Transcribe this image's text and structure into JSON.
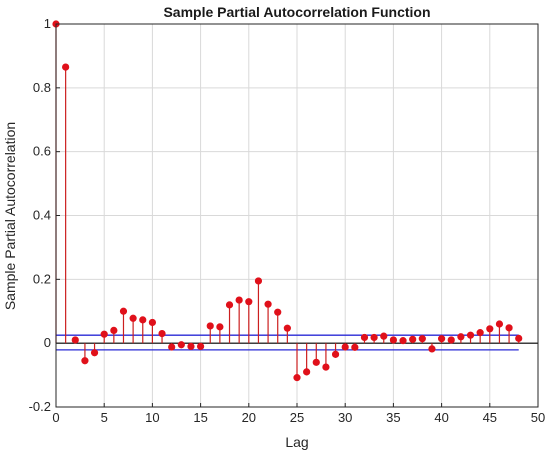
{
  "colors": {
    "stem": "#cc1f1f",
    "marker": "#e0101a",
    "bound": "#2a2ad6",
    "zero_line": "#000000",
    "grid": "#d9d9d9",
    "axis": "#262626"
  },
  "chart_data": {
    "type": "stem",
    "title": "Sample Partial Autocorrelation Function",
    "xlabel": "Lag",
    "ylabel": "Sample Partial Autocorrelation",
    "xlim": [
      0,
      50
    ],
    "ylim": [
      -0.2,
      1
    ],
    "grid": true,
    "x_ticks": [
      "0",
      "5",
      "10",
      "15",
      "20",
      "25",
      "30",
      "35",
      "40",
      "45",
      "50"
    ],
    "y_ticks": [
      "-0.2",
      "0",
      "0.2",
      "0.4",
      "0.6",
      "0.8",
      "1"
    ],
    "confidence_bounds": [
      0.025,
      -0.021
    ],
    "series": [
      {
        "lags": [
          0,
          1,
          2,
          3,
          4,
          5,
          6,
          7,
          8,
          9,
          10,
          11,
          12,
          13,
          14,
          15,
          16,
          17,
          18,
          19,
          20,
          21,
          22,
          23,
          24,
          25,
          26,
          27,
          28,
          29,
          30,
          31,
          32,
          33,
          34,
          35,
          36,
          37,
          38,
          39,
          40,
          41,
          42,
          43,
          44,
          45,
          46,
          47,
          48
        ],
        "values": [
          1.0,
          0.865,
          0.01,
          -0.055,
          -0.03,
          0.028,
          0.04,
          0.1,
          0.078,
          0.073,
          0.065,
          0.03,
          -0.012,
          -0.005,
          -0.01,
          -0.01,
          0.054,
          0.051,
          0.12,
          0.135,
          0.13,
          0.195,
          0.122,
          0.097,
          0.047,
          -0.108,
          -0.09,
          -0.06,
          -0.075,
          -0.035,
          -0.012,
          -0.013,
          0.018,
          0.018,
          0.022,
          0.01,
          0.008,
          0.012,
          0.014,
          -0.018,
          0.014,
          0.01,
          0.02,
          0.025,
          0.033,
          0.045,
          0.06,
          0.048,
          0.015
        ]
      }
    ]
  }
}
